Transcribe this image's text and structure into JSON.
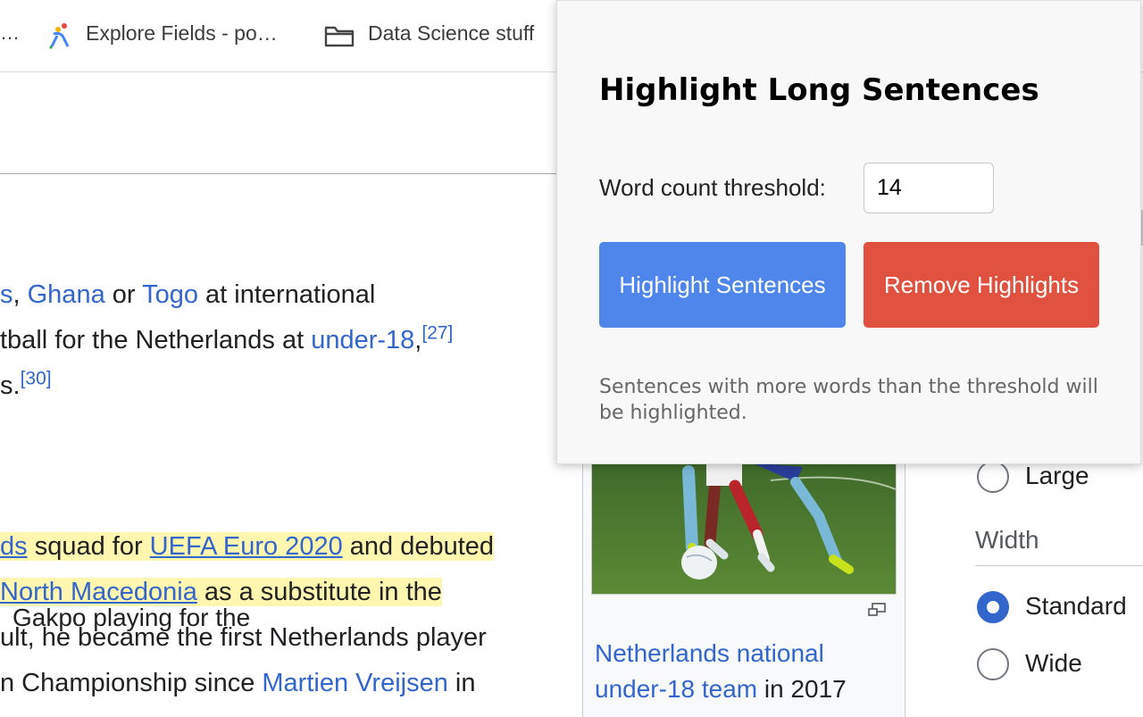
{
  "bookmarks": {
    "overflow": "…",
    "items": [
      {
        "label": "Explore Fields - po…",
        "icon": "people-graph-icon"
      },
      {
        "label": "Data Science stuff",
        "icon": "folder-icon"
      }
    ]
  },
  "article": {
    "lines": [
      {
        "parts": [
          {
            "t": "s, ",
            "link": true,
            "hl": false,
            "only_prefix": true
          }
        ]
      }
    ],
    "p1": {
      "l1": {
        "a": "s",
        "b": ", ",
        "c": "Ghana",
        "d": " or ",
        "e": "Togo",
        "f": " at international"
      },
      "l2": {
        "a": "tball for the Netherlands at ",
        "b": "under-18",
        ",": ",",
        "c": "[27]"
      },
      "l3": {
        "a": "s.",
        "b": "[30]"
      }
    },
    "p2": {
      "l1": {
        "a": "ds",
        "b": " squad for ",
        "c": "UEFA Euro 2020",
        "d": " and debuted"
      },
      "l2": {
        "a": "North Macedonia",
        "b": " as a substitute in the"
      },
      "l3": {
        "a": "ult, he became the first Netherlands player"
      },
      "l4": {
        "a": "n Championship since ",
        "b": "Martien Vreijsen",
        "c": " in"
      }
    }
  },
  "infobox": {
    "caption_l1": "Gakpo playing for the",
    "caption_l2": "Netherlands national",
    "caption_l3_link": "under-18 team",
    "caption_l3_rest": " in 2017"
  },
  "settings": {
    "text_size_large": "Large",
    "width_heading": "Width",
    "width_options": [
      {
        "label": "Standard",
        "selected": true
      },
      {
        "label": "Wide",
        "selected": false
      }
    ]
  },
  "popup": {
    "title": "Highlight Long Sentences",
    "threshold_label": "Word count threshold:",
    "threshold_value": "14",
    "highlight_button": "Highlight Sentences",
    "remove_button": "Remove Highlights",
    "help_text": "Sentences with more words than the threshold will be highlighted."
  },
  "colors": {
    "link": "#3366cc",
    "highlight": "#fff7b0",
    "highlight_button": "#4e86ec",
    "remove_button": "#e0513f",
    "radio_selected": "#3366cc"
  }
}
